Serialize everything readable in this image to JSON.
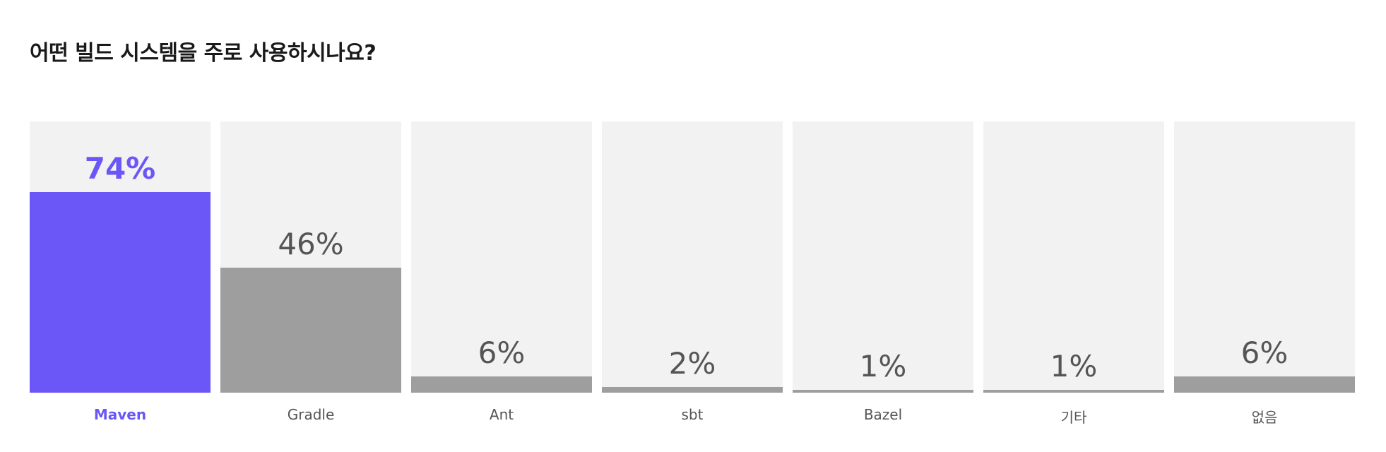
{
  "chart_data": {
    "type": "bar",
    "title": "어떤 빌드 시스템을 주로 사용하시나요?",
    "categories": [
      "Maven",
      "Gradle",
      "Ant",
      "sbt",
      "Bazel",
      "기타",
      "없음"
    ],
    "values": [
      74,
      46,
      6,
      2,
      1,
      1,
      6
    ],
    "value_labels": [
      "74%",
      "46%",
      "6%",
      "2%",
      "1%",
      "1%",
      "6%"
    ],
    "highlight_index": 0,
    "ylim": [
      0,
      100
    ],
    "grid": false,
    "colors": {
      "highlight": "#6b57f7",
      "bar": "#9e9e9e",
      "track": "#f2f2f2",
      "text": "#555555"
    }
  }
}
